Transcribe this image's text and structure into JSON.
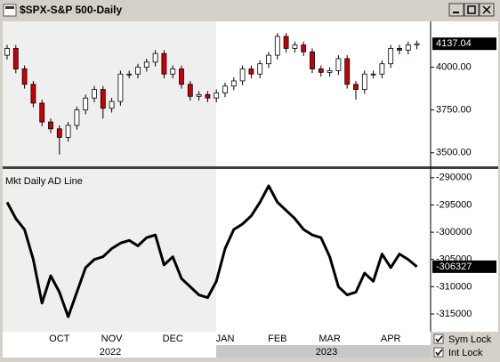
{
  "ui": {
    "window_title": "$SPX-S&P 500-Daily",
    "sym_lock": "Sym Lock",
    "int_lock": "Int Lock"
  },
  "chart_data": [
    {
      "type": "candlestick",
      "up_color": "#ffffff",
      "down_color": "#cc0000",
      "open": [
        4070,
        4110,
        3990,
        3900,
        3790,
        3680,
        3640,
        3590,
        3660,
        3750,
        3820,
        3870,
        3760,
        3800,
        3960,
        3960,
        4000,
        4030,
        4080,
        3960,
        3990,
        3900,
        3830,
        3840,
        3820,
        3850,
        3890,
        3920,
        3990,
        3960,
        4020,
        4070,
        4180,
        4110,
        4130,
        4090,
        3990,
        3970,
        3980,
        4050,
        3900,
        3870,
        3960,
        3960,
        4020,
        4110,
        4100,
        4130
      ],
      "high": [
        4130,
        4130,
        4010,
        3920,
        3810,
        3700,
        3660,
        3680,
        3770,
        3840,
        3890,
        3890,
        3820,
        3980,
        3980,
        4020,
        4050,
        4100,
        4100,
        4010,
        4010,
        3920,
        3860,
        3860,
        3870,
        3910,
        3940,
        4010,
        4010,
        4040,
        4090,
        4200,
        4200,
        4150,
        4150,
        4110,
        4010,
        4000,
        4070,
        4070,
        3920,
        3980,
        3980,
        4040,
        4130,
        4130,
        4150,
        4155
      ],
      "low": [
        4045,
        3965,
        3875,
        3765,
        3655,
        3615,
        3490,
        3565,
        3635,
        3725,
        3795,
        3700,
        3735,
        3775,
        3935,
        3935,
        3975,
        4005,
        3935,
        3935,
        3875,
        3805,
        3805,
        3795,
        3795,
        3825,
        3865,
        3895,
        3935,
        3935,
        3995,
        4045,
        4085,
        4085,
        4065,
        3965,
        3945,
        3945,
        3955,
        3875,
        3810,
        3845,
        3935,
        3935,
        3995,
        4075,
        4075,
        4105
      ],
      "close": [
        4110,
        3990,
        3900,
        3790,
        3680,
        3640,
        3590,
        3660,
        3750,
        3820,
        3870,
        3760,
        3800,
        3960,
        3960,
        4000,
        4030,
        4080,
        3960,
        3990,
        3900,
        3830,
        3840,
        3820,
        3850,
        3890,
        3920,
        3990,
        3960,
        4020,
        4070,
        4180,
        4110,
        4130,
        4090,
        3990,
        3970,
        3980,
        4050,
        3900,
        3870,
        3960,
        3960,
        4020,
        4110,
        4100,
        4130,
        4137.04
      ],
      "ylim": [
        3426,
        4268
      ],
      "yticks": [
        {
          "value": 3500,
          "label": "3500.00"
        },
        {
          "value": 3750,
          "label": "3750.00"
        },
        {
          "value": 4000,
          "label": "4000.00"
        }
      ]
    },
    {
      "type": "line",
      "title": "Mkt Daily AD Line",
      "color": "#000000",
      "categories": [
        null,
        null,
        null,
        null,
        null,
        null,
        "OCT",
        null,
        null,
        null,
        null,
        null,
        "NOV",
        null,
        null,
        null,
        null,
        null,
        null,
        "DEC",
        null,
        null,
        null,
        null,
        null,
        "JAN",
        null,
        null,
        null,
        null,
        null,
        "FEB",
        null,
        null,
        null,
        null,
        null,
        "MAR",
        null,
        null,
        null,
        null,
        null,
        null,
        "APR",
        null,
        null,
        null
      ],
      "year_labels": [
        "2022",
        "2023"
      ],
      "values": [
        -294500,
        -297500,
        -299500,
        -305000,
        -313000,
        -308000,
        -311000,
        -315500,
        -311000,
        -306500,
        -305000,
        -304500,
        -303000,
        -302000,
        -301500,
        -302500,
        -301000,
        -300500,
        -306000,
        -304500,
        -308500,
        -310000,
        -311500,
        -312000,
        -309000,
        -303000,
        -299500,
        -298500,
        -297000,
        -294500,
        -291500,
        -294500,
        -296000,
        -297500,
        -299500,
        -300500,
        -301000,
        -304500,
        -310000,
        -311500,
        -311000,
        -307500,
        -309000,
        -304000,
        -306500,
        -304000,
        -305000,
        -306327
      ],
      "ylim": [
        -318100,
        -288400
      ],
      "yticks": [
        -290000,
        -295000,
        -300000,
        -305000,
        -310000,
        -315000
      ]
    }
  ]
}
